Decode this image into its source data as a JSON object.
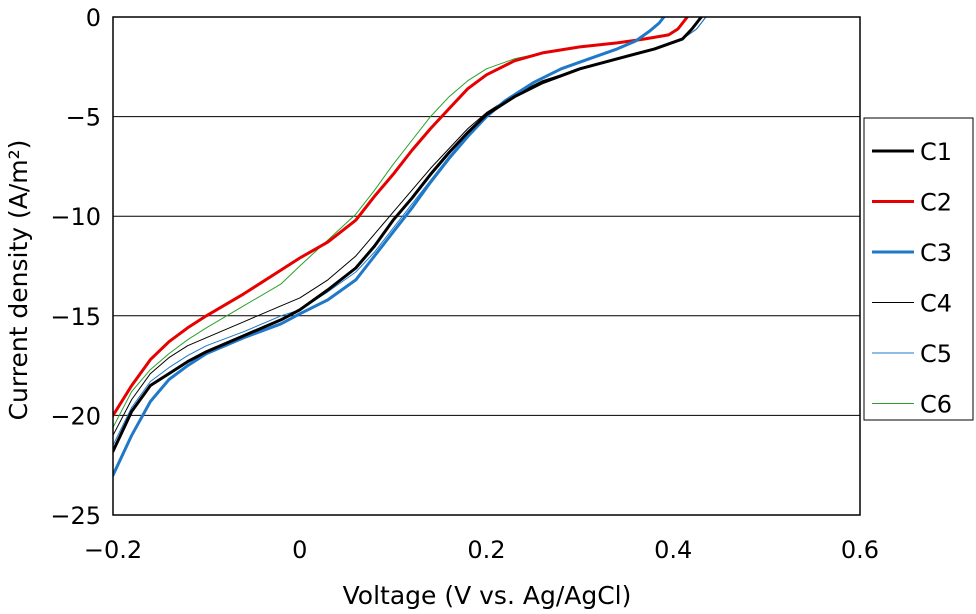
{
  "chart_data": {
    "type": "line",
    "title": "",
    "xlabel": "Voltage (V vs. Ag/AgCl)",
    "ylabel": "Current density (A/m²)",
    "xlim": [
      -0.2,
      0.6
    ],
    "ylim": [
      -25,
      0
    ],
    "xticks": [
      -0.2,
      0,
      0.2,
      0.4,
      0.6
    ],
    "xtick_labels": [
      "−0.2",
      "0",
      "0.2",
      "0.4",
      "0.6"
    ],
    "yticks": [
      0,
      -5,
      -10,
      -15,
      -20,
      -25
    ],
    "ytick_labels": [
      "0",
      "−5",
      "−10",
      "−15",
      "−20",
      "−25"
    ],
    "grid": "horizontal",
    "legend_position": "right",
    "series": [
      {
        "name": "C1",
        "color": "#000000",
        "width": 3,
        "x": [
          -0.2,
          -0.18,
          -0.16,
          -0.14,
          -0.12,
          -0.1,
          -0.06,
          -0.02,
          0.0,
          0.03,
          0.06,
          0.08,
          0.1,
          0.12,
          0.14,
          0.16,
          0.18,
          0.2,
          0.23,
          0.26,
          0.3,
          0.34,
          0.38,
          0.41,
          0.42,
          0.425,
          0.43
        ],
        "y": [
          -21.8,
          -19.8,
          -18.5,
          -17.9,
          -17.3,
          -16.8,
          -16.0,
          -15.2,
          -14.7,
          -13.7,
          -12.6,
          -11.5,
          -10.2,
          -9.1,
          -7.9,
          -6.8,
          -5.8,
          -4.9,
          -4.0,
          -3.3,
          -2.6,
          -2.1,
          -1.6,
          -1.1,
          -0.6,
          -0.3,
          0.0
        ]
      },
      {
        "name": "C2",
        "color": "#e60000",
        "width": 3,
        "x": [
          -0.2,
          -0.18,
          -0.16,
          -0.14,
          -0.12,
          -0.1,
          -0.06,
          -0.02,
          0.0,
          0.03,
          0.06,
          0.08,
          0.1,
          0.12,
          0.14,
          0.16,
          0.18,
          0.2,
          0.23,
          0.26,
          0.3,
          0.34,
          0.37,
          0.395,
          0.405,
          0.41,
          0.415
        ],
        "y": [
          -20.0,
          -18.5,
          -17.2,
          -16.3,
          -15.6,
          -15.0,
          -13.9,
          -12.7,
          -12.1,
          -11.3,
          -10.2,
          -9.0,
          -7.9,
          -6.7,
          -5.6,
          -4.6,
          -3.6,
          -2.9,
          -2.2,
          -1.8,
          -1.5,
          -1.3,
          -1.1,
          -0.9,
          -0.6,
          -0.3,
          0.0
        ]
      },
      {
        "name": "C3",
        "color": "#1f78c8",
        "width": 3,
        "x": [
          -0.2,
          -0.18,
          -0.16,
          -0.14,
          -0.12,
          -0.1,
          -0.06,
          -0.02,
          0.0,
          0.03,
          0.06,
          0.08,
          0.1,
          0.12,
          0.14,
          0.16,
          0.18,
          0.2,
          0.22,
          0.25,
          0.28,
          0.31,
          0.34,
          0.36,
          0.375,
          0.385,
          0.39
        ],
        "y": [
          -23.0,
          -21.0,
          -19.3,
          -18.2,
          -17.5,
          -16.9,
          -16.1,
          -15.4,
          -14.9,
          -14.2,
          -13.2,
          -12.0,
          -10.8,
          -9.6,
          -8.3,
          -7.1,
          -6.0,
          -5.0,
          -4.2,
          -3.3,
          -2.6,
          -2.1,
          -1.6,
          -1.2,
          -0.7,
          -0.3,
          0.0
        ]
      },
      {
        "name": "C4",
        "color": "#000000",
        "width": 1,
        "x": [
          -0.2,
          -0.18,
          -0.16,
          -0.14,
          -0.12,
          -0.1,
          -0.06,
          -0.02,
          0.0,
          0.03,
          0.06,
          0.08,
          0.1,
          0.12,
          0.14,
          0.16,
          0.18,
          0.2,
          0.23,
          0.26,
          0.3,
          0.34,
          0.38,
          0.41,
          0.425,
          0.43,
          0.435
        ],
        "y": [
          -21.0,
          -19.2,
          -17.9,
          -17.1,
          -16.5,
          -16.1,
          -15.3,
          -14.5,
          -14.1,
          -13.2,
          -12.0,
          -10.9,
          -9.8,
          -8.7,
          -7.6,
          -6.6,
          -5.6,
          -4.8,
          -3.9,
          -3.2,
          -2.6,
          -2.1,
          -1.6,
          -1.1,
          -0.6,
          -0.3,
          0.0
        ]
      },
      {
        "name": "C5",
        "color": "#1f78c8",
        "width": 1,
        "x": [
          -0.2,
          -0.18,
          -0.16,
          -0.14,
          -0.12,
          -0.1,
          -0.06,
          -0.02,
          0.0,
          0.03,
          0.06,
          0.08,
          0.1,
          0.12,
          0.14,
          0.16,
          0.18,
          0.2,
          0.23,
          0.26,
          0.3,
          0.34,
          0.38,
          0.41,
          0.425,
          0.43,
          0.435
        ],
        "y": [
          -21.5,
          -19.6,
          -18.3,
          -17.6,
          -17.0,
          -16.5,
          -15.8,
          -15.0,
          -14.7,
          -13.8,
          -12.8,
          -11.8,
          -10.6,
          -9.4,
          -8.2,
          -7.0,
          -5.9,
          -5.0,
          -4.0,
          -3.3,
          -2.6,
          -2.1,
          -1.6,
          -1.1,
          -0.6,
          -0.3,
          0.0
        ]
      },
      {
        "name": "C6",
        "color": "#2ca02c",
        "width": 1,
        "x": [
          -0.2,
          -0.18,
          -0.16,
          -0.14,
          -0.12,
          -0.1,
          -0.06,
          -0.02,
          0.0,
          0.03,
          0.06,
          0.08,
          0.1,
          0.12,
          0.14,
          0.16,
          0.18,
          0.2,
          0.23,
          0.26,
          0.3,
          0.34,
          0.37,
          0.395,
          0.405,
          0.41,
          0.415
        ],
        "y": [
          -20.6,
          -18.8,
          -17.7,
          -16.9,
          -16.2,
          -15.6,
          -14.5,
          -13.4,
          -12.5,
          -11.2,
          -9.9,
          -8.7,
          -7.4,
          -6.2,
          -5.0,
          -4.0,
          -3.2,
          -2.6,
          -2.1,
          -1.8,
          -1.5,
          -1.3,
          -1.1,
          -0.9,
          -0.6,
          -0.3,
          0.0
        ]
      }
    ]
  }
}
